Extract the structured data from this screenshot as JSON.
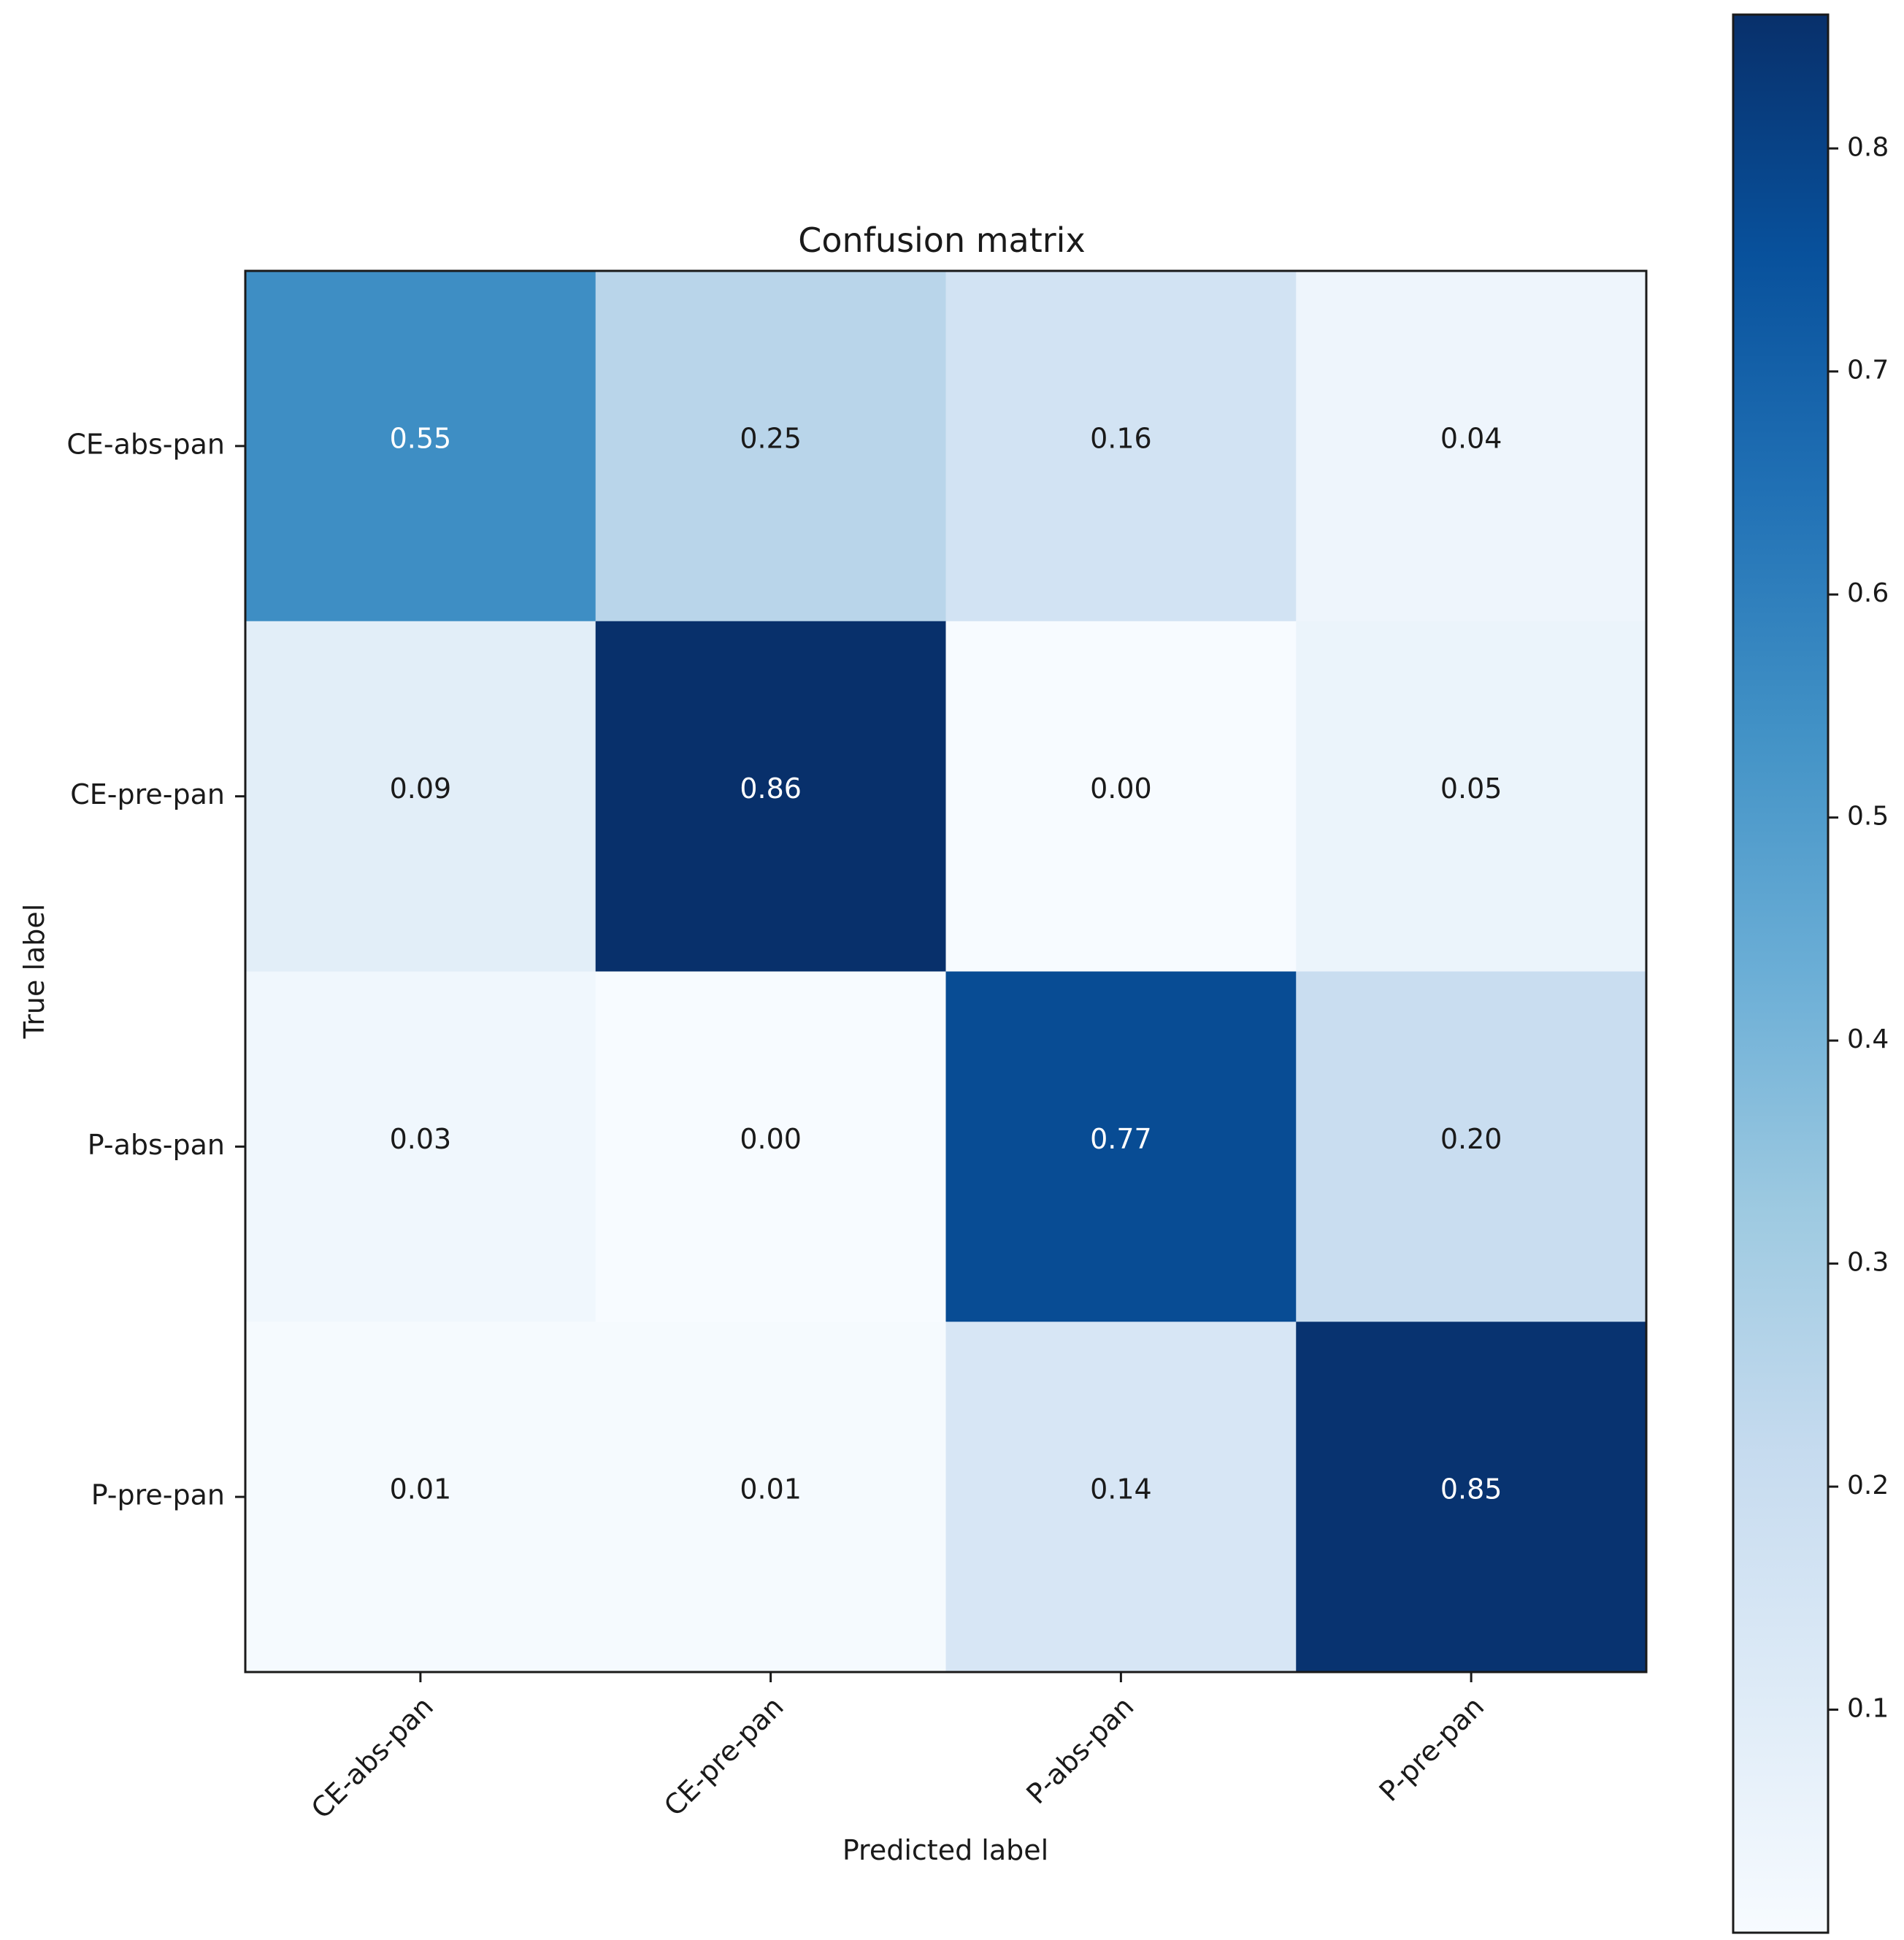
{
  "chart_data": {
    "type": "heatmap",
    "title": "Confusion matrix",
    "xlabel": "Predicted label",
    "ylabel": "True label",
    "x_categories": [
      "CE-abs-pan",
      "CE-pre-pan",
      "P-abs-pan",
      "P-pre-pan"
    ],
    "y_categories": [
      "CE-abs-pan",
      "CE-pre-pan",
      "P-abs-pan",
      "P-pre-pan"
    ],
    "values": [
      [
        0.55,
        0.25,
        0.16,
        0.04
      ],
      [
        0.09,
        0.86,
        0.0,
        0.05
      ],
      [
        0.03,
        0.0,
        0.77,
        0.2
      ],
      [
        0.01,
        0.01,
        0.14,
        0.85
      ]
    ],
    "cell_labels": [
      [
        "0.55",
        "0.25",
        "0.16",
        "0.04"
      ],
      [
        "0.09",
        "0.86",
        "0.00",
        "0.05"
      ],
      [
        "0.03",
        "0.00",
        "0.77",
        "0.20"
      ],
      [
        "0.01",
        "0.01",
        "0.14",
        "0.85"
      ]
    ],
    "colormap": "Blues",
    "colorbar": {
      "range": [
        0.0,
        0.86
      ],
      "ticks": [
        0.1,
        0.2,
        0.3,
        0.4,
        0.5,
        0.6,
        0.7,
        0.8
      ],
      "tick_labels": [
        "0.1",
        "0.2",
        "0.3",
        "0.4",
        "0.5",
        "0.6",
        "0.7",
        "0.8"
      ]
    },
    "grid": false
  }
}
